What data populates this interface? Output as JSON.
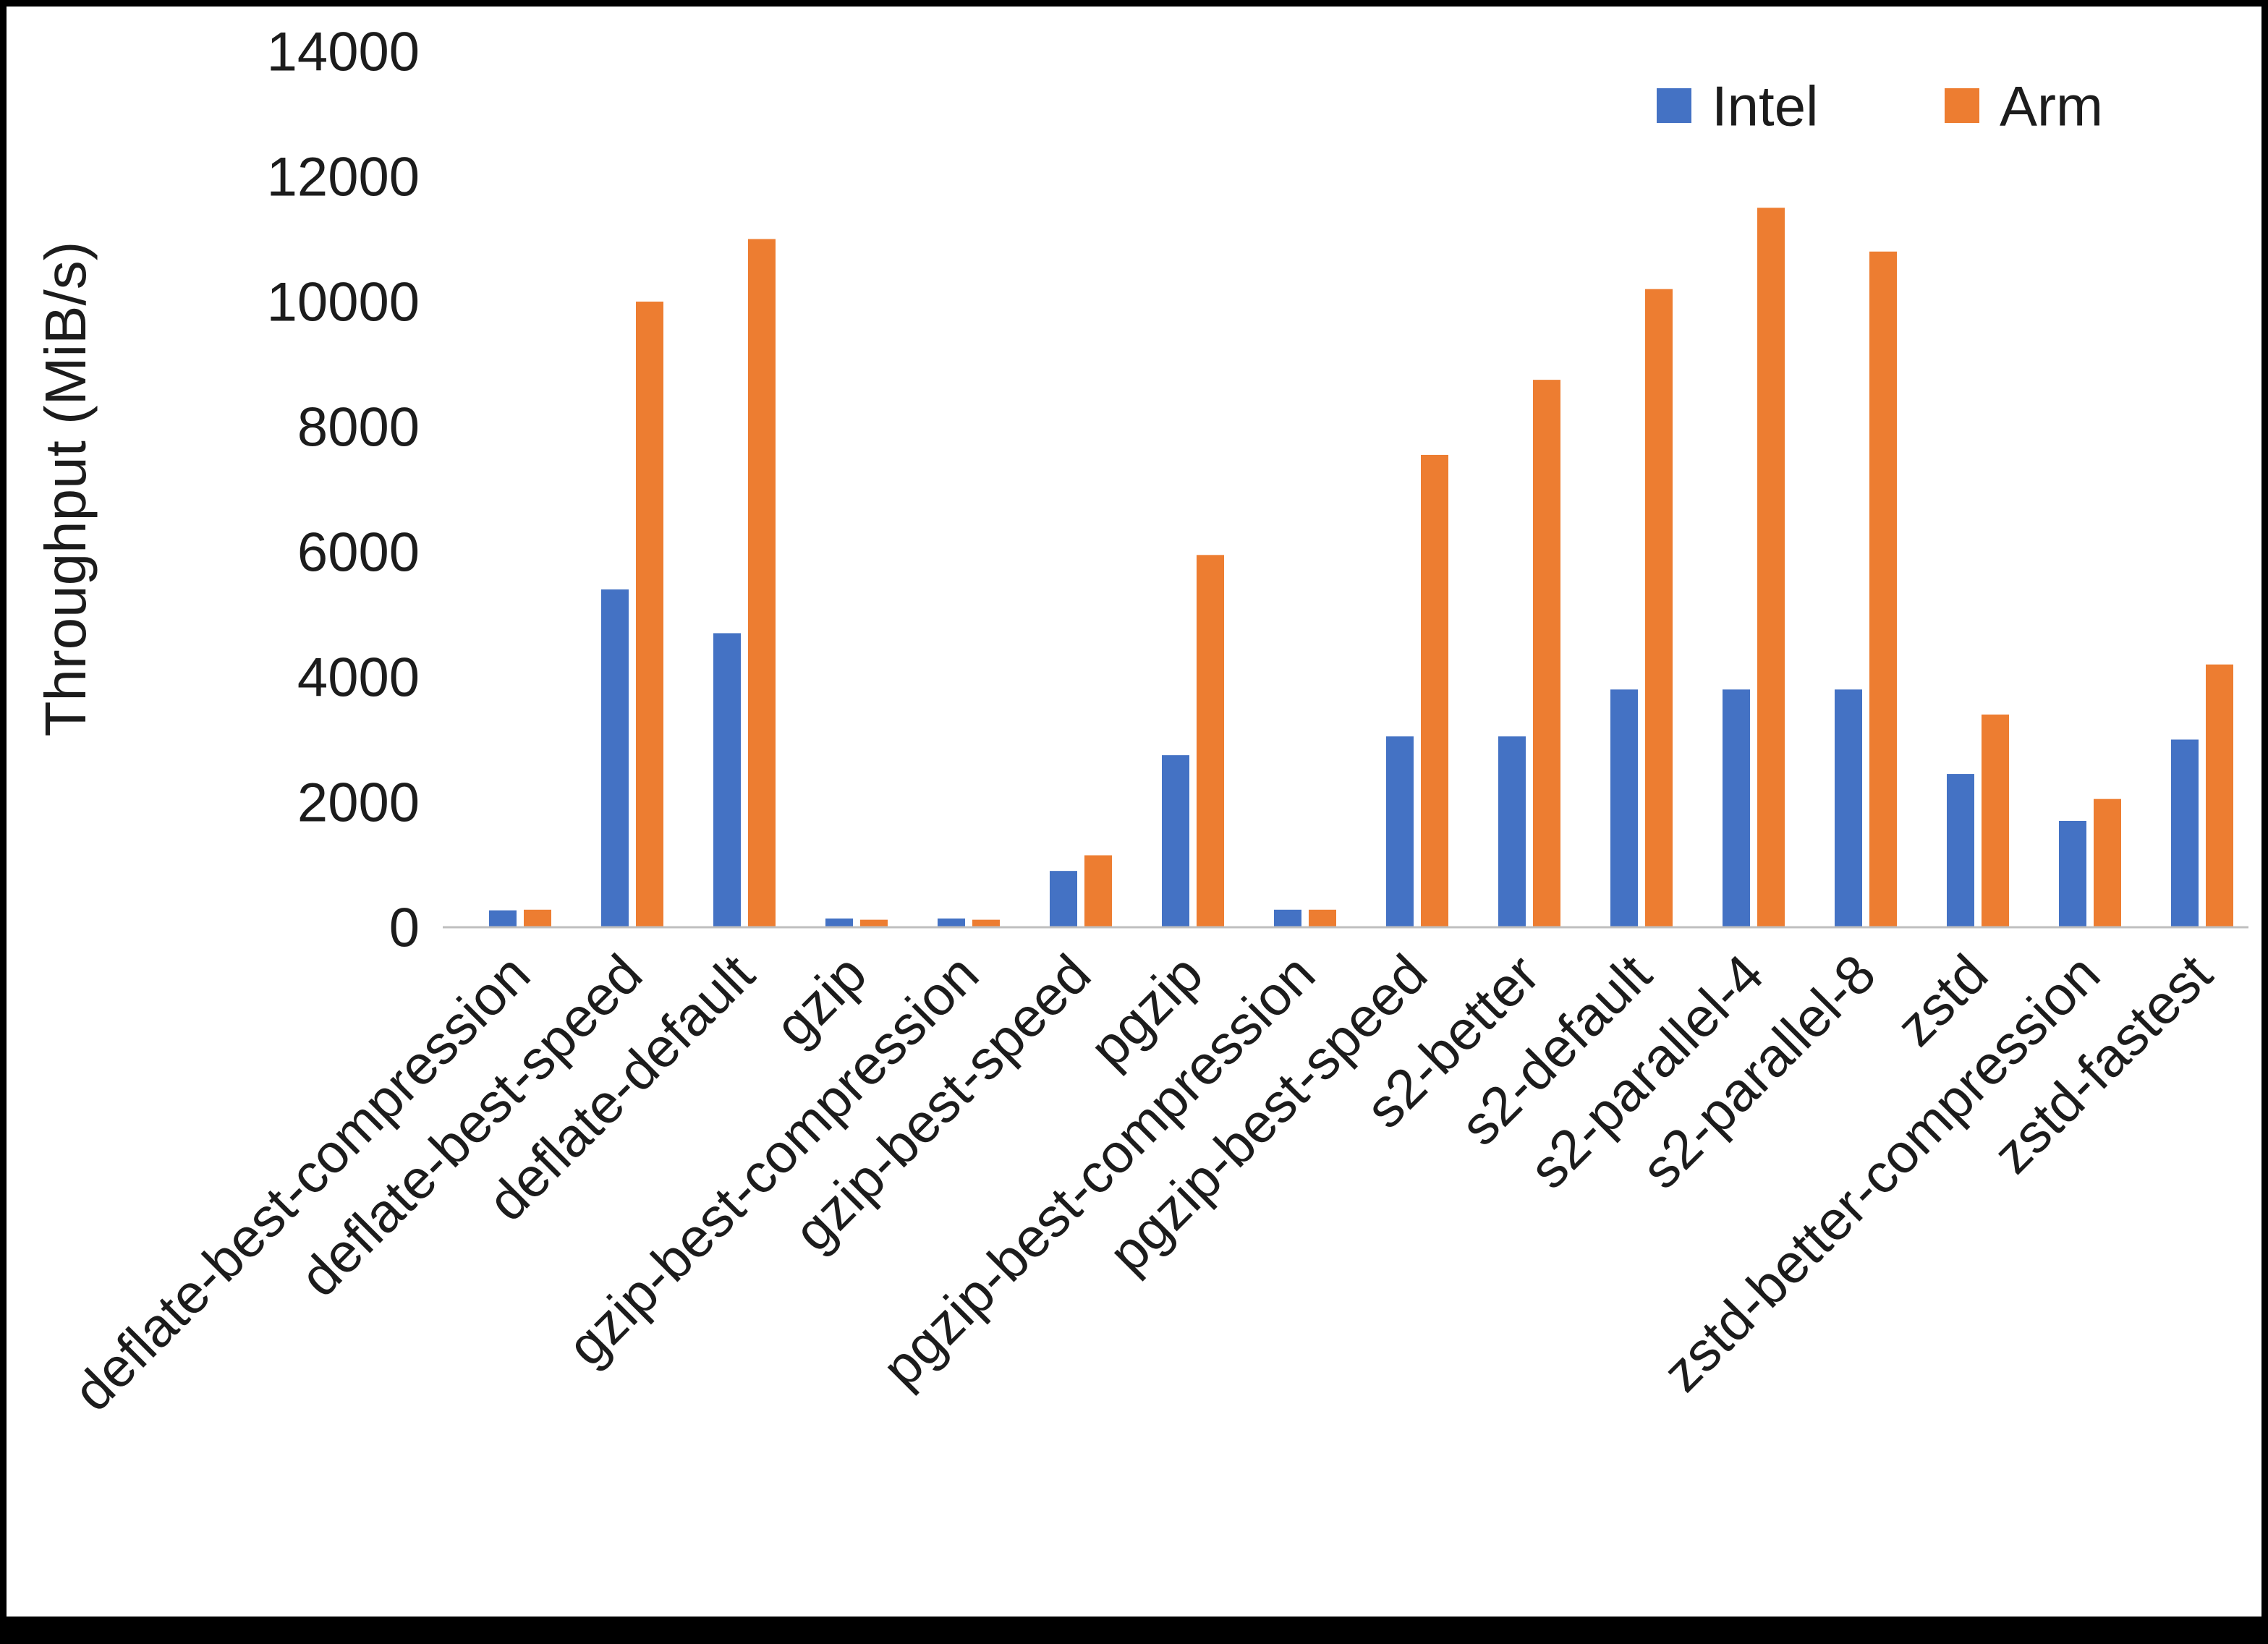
{
  "chart_data": {
    "type": "bar",
    "title": "",
    "xlabel": "",
    "ylabel": "Throughput (MiB/s)",
    "ylim": [
      0,
      14000
    ],
    "yticks": [
      0,
      2000,
      4000,
      6000,
      8000,
      10000,
      12000,
      14000
    ],
    "grid": false,
    "legend_position": "top-right",
    "categories": [
      "deflate-best-compression",
      "deflate-best-speed",
      "deflate-default",
      "gzip",
      "gzip-best-compression",
      "gzip-best-speed",
      "pgzip",
      "pgzip-best-compression",
      "pgzip-best-speed",
      "s2-better",
      "s2-default",
      "s2-parallel-4",
      "s2-parallel-8",
      "zstd",
      "zstd-better-compression",
      "zstd-fastest"
    ],
    "series": [
      {
        "name": "Intel",
        "color": "#4472C4",
        "values": [
          270,
          5400,
          4700,
          140,
          140,
          900,
          2750,
          280,
          3050,
          3050,
          3800,
          3800,
          3800,
          2450,
          1700,
          3000
        ]
      },
      {
        "name": "Arm",
        "color": "#ED7D31",
        "values": [
          280,
          10000,
          11000,
          120,
          120,
          1150,
          5950,
          280,
          7550,
          8750,
          10200,
          11500,
          10800,
          3400,
          2050,
          4200
        ]
      }
    ]
  }
}
